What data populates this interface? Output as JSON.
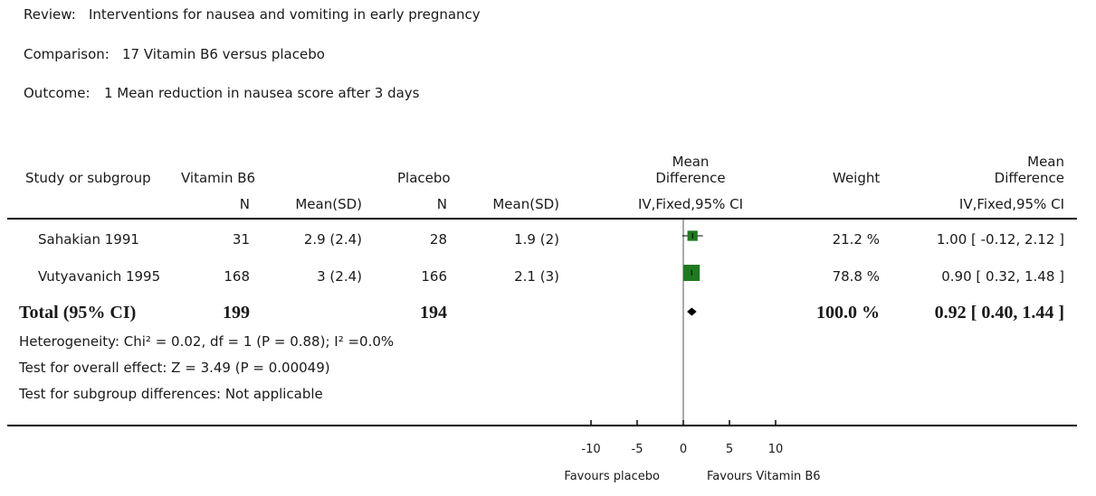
{
  "header": {
    "review_label": "Review:",
    "review_value": "Interventions for nausea and vomiting in early pregnancy",
    "comparison_label": "Comparison:",
    "comparison_value": "17 Vitamin B6 versus placebo",
    "outcome_label": "Outcome:",
    "outcome_value": "1 Mean reduction in nausea score after 3 days"
  },
  "columns": {
    "study": "Study or subgroup",
    "group1": "Vitamin B6",
    "group2": "Placebo",
    "n": "N",
    "mean_sd": "Mean(SD)",
    "md_line1": "Mean",
    "md_line2": "Difference",
    "md_line3": "IV,Fixed,95% CI",
    "weight": "Weight",
    "md_right_line1": "Mean",
    "md_right_line2": "Difference",
    "md_right_line3": "IV,Fixed,95% CI"
  },
  "total": {
    "label": "Total (95% CI)",
    "n1": "199",
    "n2": "194",
    "weight": "100.0 %",
    "ci_text": "0.92 [ 0.40, 1.44 ]"
  },
  "footer": {
    "heterogeneity": "Heterogeneity: Chi² = 0.02, df = 1 (P = 0.88); I² =0.0%",
    "overall_effect": "Test for overall effect: Z = 3.49 (P = 0.00049)",
    "subgroup": "Test for subgroup differences: Not applicable"
  },
  "chart_data": {
    "type": "forest",
    "title": "1 Mean reduction in nausea score after 3 days",
    "x_range": [
      -10,
      10
    ],
    "x_ticks": [
      -10,
      -5,
      0,
      5,
      10
    ],
    "x_tick_labels": [
      "-10",
      "-5",
      "0",
      "5",
      "10"
    ],
    "favours_left": "Favours placebo",
    "favours_right": "Favours Vitamin B6",
    "colors": {
      "square": "#1f7a1f",
      "line": "#000000",
      "diamond": "#000000"
    },
    "studies": [
      {
        "name": "Sahakian 1991",
        "n1": "31",
        "mean_sd1": "2.9 (2.4)",
        "n2": "28",
        "mean_sd2": "1.9 (2)",
        "weight_text": "21.2 %",
        "ci_text": "1.00 [ -0.12, 2.12 ]",
        "md": 1.0,
        "lo": -0.12,
        "hi": 2.12,
        "weight": 21.2
      },
      {
        "name": "Vutyavanich 1995",
        "n1": "168",
        "mean_sd1": "3 (2.4)",
        "n2": "166",
        "mean_sd2": "2.1 (3)",
        "weight_text": "78.8 %",
        "ci_text": "0.90 [ 0.32, 1.48 ]",
        "md": 0.9,
        "lo": 0.32,
        "hi": 1.48,
        "weight": 78.8
      }
    ],
    "pooled": {
      "md": 0.92,
      "lo": 0.4,
      "hi": 1.44
    }
  }
}
